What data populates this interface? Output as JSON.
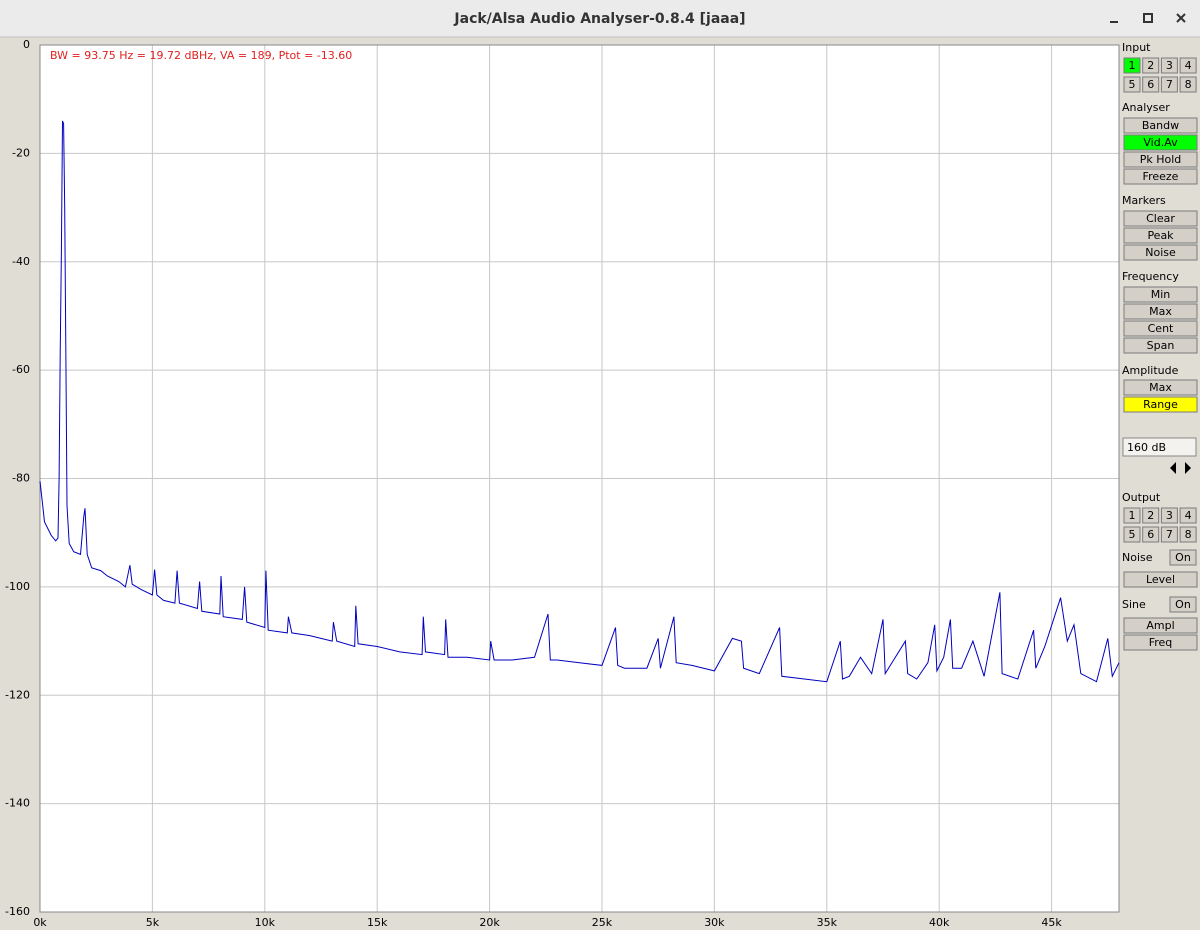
{
  "window": {
    "title": "Jack/Alsa Audio Analyser-0.8.4  [jaaa]"
  },
  "chart_data": {
    "type": "line",
    "annotation": "BW = 93.75 Hz = 19.72 dBHz, VA = 189, Ptot = -13.60",
    "color": "#0000c0",
    "xlim": [
      0,
      48000
    ],
    "ylim": [
      -160,
      0
    ],
    "xticks": [
      {
        "value": 0,
        "label": "0k"
      },
      {
        "value": 5000,
        "label": "5k"
      },
      {
        "value": 10000,
        "label": "10k"
      },
      {
        "value": 15000,
        "label": "15k"
      },
      {
        "value": 20000,
        "label": "20k"
      },
      {
        "value": 25000,
        "label": "25k"
      },
      {
        "value": 30000,
        "label": "30k"
      },
      {
        "value": 35000,
        "label": "35k"
      },
      {
        "value": 40000,
        "label": "40k"
      },
      {
        "value": 45000,
        "label": "45k"
      }
    ],
    "yticks": [
      0,
      -20,
      -40,
      -60,
      -80,
      -100,
      -120,
      -140,
      -160
    ],
    "grid": true,
    "x": [
      0,
      200,
      500,
      700,
      800,
      850,
      900,
      950,
      1000,
      1050,
      1100,
      1150,
      1200,
      1300,
      1500,
      1800,
      1950,
      2000,
      2100,
      2300,
      2700,
      3000,
      3500,
      3800,
      4000,
      4100,
      4500,
      5000,
      5100,
      5200,
      5500,
      6000,
      6100,
      6200,
      7000,
      7100,
      7200,
      8000,
      8050,
      8150,
      9000,
      9100,
      9200,
      10000,
      10050,
      10150,
      11000,
      11050,
      11200,
      12000,
      13000,
      13050,
      13200,
      14000,
      14050,
      14150,
      15000,
      16000,
      17000,
      17050,
      17150,
      18000,
      18050,
      18150,
      19000,
      20000,
      20050,
      20200,
      21000,
      22000,
      22600,
      22700,
      23000,
      24000,
      25000,
      25600,
      25700,
      26000,
      27000,
      27500,
      27600,
      28200,
      28300,
      29000,
      30000,
      30800,
      31200,
      31300,
      32000,
      32900,
      33000,
      34000,
      35000,
      35600,
      35700,
      36000,
      36500,
      37000,
      37500,
      37600,
      38500,
      38600,
      39000,
      39500,
      39800,
      39900,
      40200,
      40500,
      40600,
      41000,
      41500,
      42000,
      42700,
      42800,
      43500,
      44200,
      44300,
      44700,
      45400,
      45700,
      46000,
      46300,
      47000,
      47500,
      47700,
      48000
    ],
    "values": [
      -80.5,
      -88,
      -90.5,
      -91.5,
      -91,
      -80,
      -57,
      -38,
      -14,
      -14.5,
      -30,
      -58,
      -85,
      -92,
      -93.5,
      -94,
      -87,
      -85.5,
      -94,
      -96.5,
      -97,
      -98,
      -99,
      -100,
      -96,
      -99.5,
      -100.5,
      -101.5,
      -96.8,
      -101.5,
      -102.5,
      -103,
      -97,
      -103,
      -104,
      -99,
      -104.5,
      -105,
      -98,
      -105.5,
      -106,
      -100,
      -106.5,
      -107.5,
      -97,
      -108,
      -108.5,
      -105.5,
      -108.5,
      -109,
      -110,
      -106.5,
      -110,
      -111,
      -103.5,
      -110.5,
      -111,
      -112,
      -112.5,
      -105.5,
      -112,
      -112.5,
      -106,
      -113,
      -113,
      -113.5,
      -110,
      -113.5,
      -113.5,
      -113,
      -105,
      -113.5,
      -113.5,
      -114,
      -114.5,
      -107.5,
      -114.5,
      -115,
      -115,
      -109.5,
      -115,
      -105.5,
      -114,
      -114.5,
      -115.5,
      -109.5,
      -110,
      -115,
      -116,
      -107.5,
      -116.5,
      -117,
      -117.5,
      -110,
      -117,
      -116.5,
      -113,
      -116,
      -106,
      -116,
      -110,
      -116,
      -117,
      -114,
      -107,
      -115.5,
      -113,
      -106,
      -115,
      -115,
      -110,
      -116.5,
      -101,
      -116,
      -117,
      -108,
      -115,
      -111,
      -102,
      -110,
      -107,
      -116,
      -117.5,
      -109.5,
      -116.5,
      -114
    ]
  },
  "panel": {
    "input": {
      "label": "Input",
      "buttons": [
        "1",
        "2",
        "3",
        "4",
        "5",
        "6",
        "7",
        "8"
      ],
      "active_index": 0,
      "active_color": "#00ff00"
    },
    "analyser": {
      "label": "Analyser",
      "buttons": [
        "Bandw",
        "Vid.Av",
        "Pk Hold",
        "Freeze"
      ],
      "active_index": 1,
      "active_color": "#00ff00"
    },
    "markers": {
      "label": "Markers",
      "buttons": [
        "Clear",
        "Peak",
        "Noise"
      ]
    },
    "frequency": {
      "label": "Frequency",
      "buttons": [
        "Min",
        "Max",
        "Cent",
        "Span"
      ]
    },
    "amplitude": {
      "label": "Amplitude",
      "buttons": [
        "Max",
        "Range"
      ],
      "active_index": 1,
      "active_color": "#ffff00"
    },
    "range_field": "160 dB",
    "output": {
      "label": "Output",
      "buttons": [
        "1",
        "2",
        "3",
        "4",
        "5",
        "6",
        "7",
        "8"
      ]
    },
    "noise": {
      "label": "Noise",
      "toggle": "On",
      "buttons": [
        "Level"
      ]
    },
    "sine": {
      "label": "Sine",
      "toggle": "On",
      "buttons": [
        "Ampl",
        "Freq"
      ]
    }
  }
}
